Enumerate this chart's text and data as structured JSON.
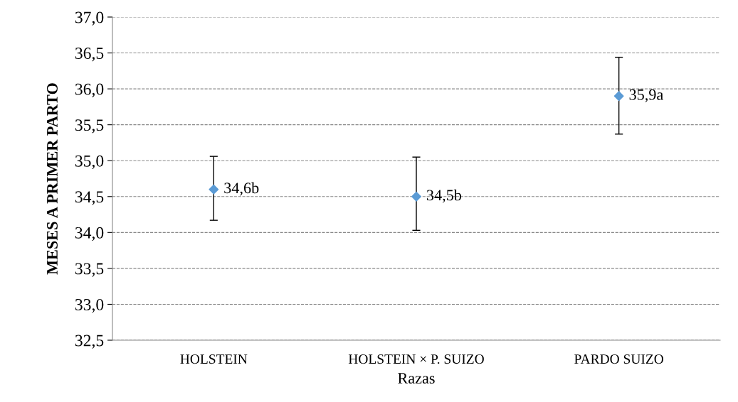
{
  "chart_data": {
    "type": "scatter",
    "xlabel": "Razas",
    "ylabel": "MESES A PRIMER PARTO",
    "categories": [
      "HOLSTEIN",
      "HOLSTEIN × P. SUIZO",
      "PARDO SUIZO"
    ],
    "values": [
      34.6,
      34.5,
      35.9
    ],
    "value_labels": [
      "34,6b",
      "34,5b",
      "35,9a"
    ],
    "errors": [
      [
        34.17,
        35.06
      ],
      [
        34.03,
        35.05
      ],
      [
        35.37,
        36.44
      ]
    ],
    "color": "#5b9bd5",
    "marker": "diamond",
    "grid": "y",
    "legend": false,
    "ylim": [
      32.5,
      37.0
    ],
    "yticks": [
      {
        "value": 32.5,
        "label": "32,5"
      },
      {
        "value": 33.0,
        "label": "33,0"
      },
      {
        "value": 33.5,
        "label": "33,5"
      },
      {
        "value": 34.0,
        "label": "34,0"
      },
      {
        "value": 34.5,
        "label": "34,5"
      },
      {
        "value": 35.0,
        "label": "35,0"
      },
      {
        "value": 35.5,
        "label": "35,5"
      },
      {
        "value": 36.0,
        "label": "36,0"
      },
      {
        "value": 36.5,
        "label": "36,5"
      },
      {
        "value": 37.0,
        "label": "37,0"
      }
    ]
  }
}
